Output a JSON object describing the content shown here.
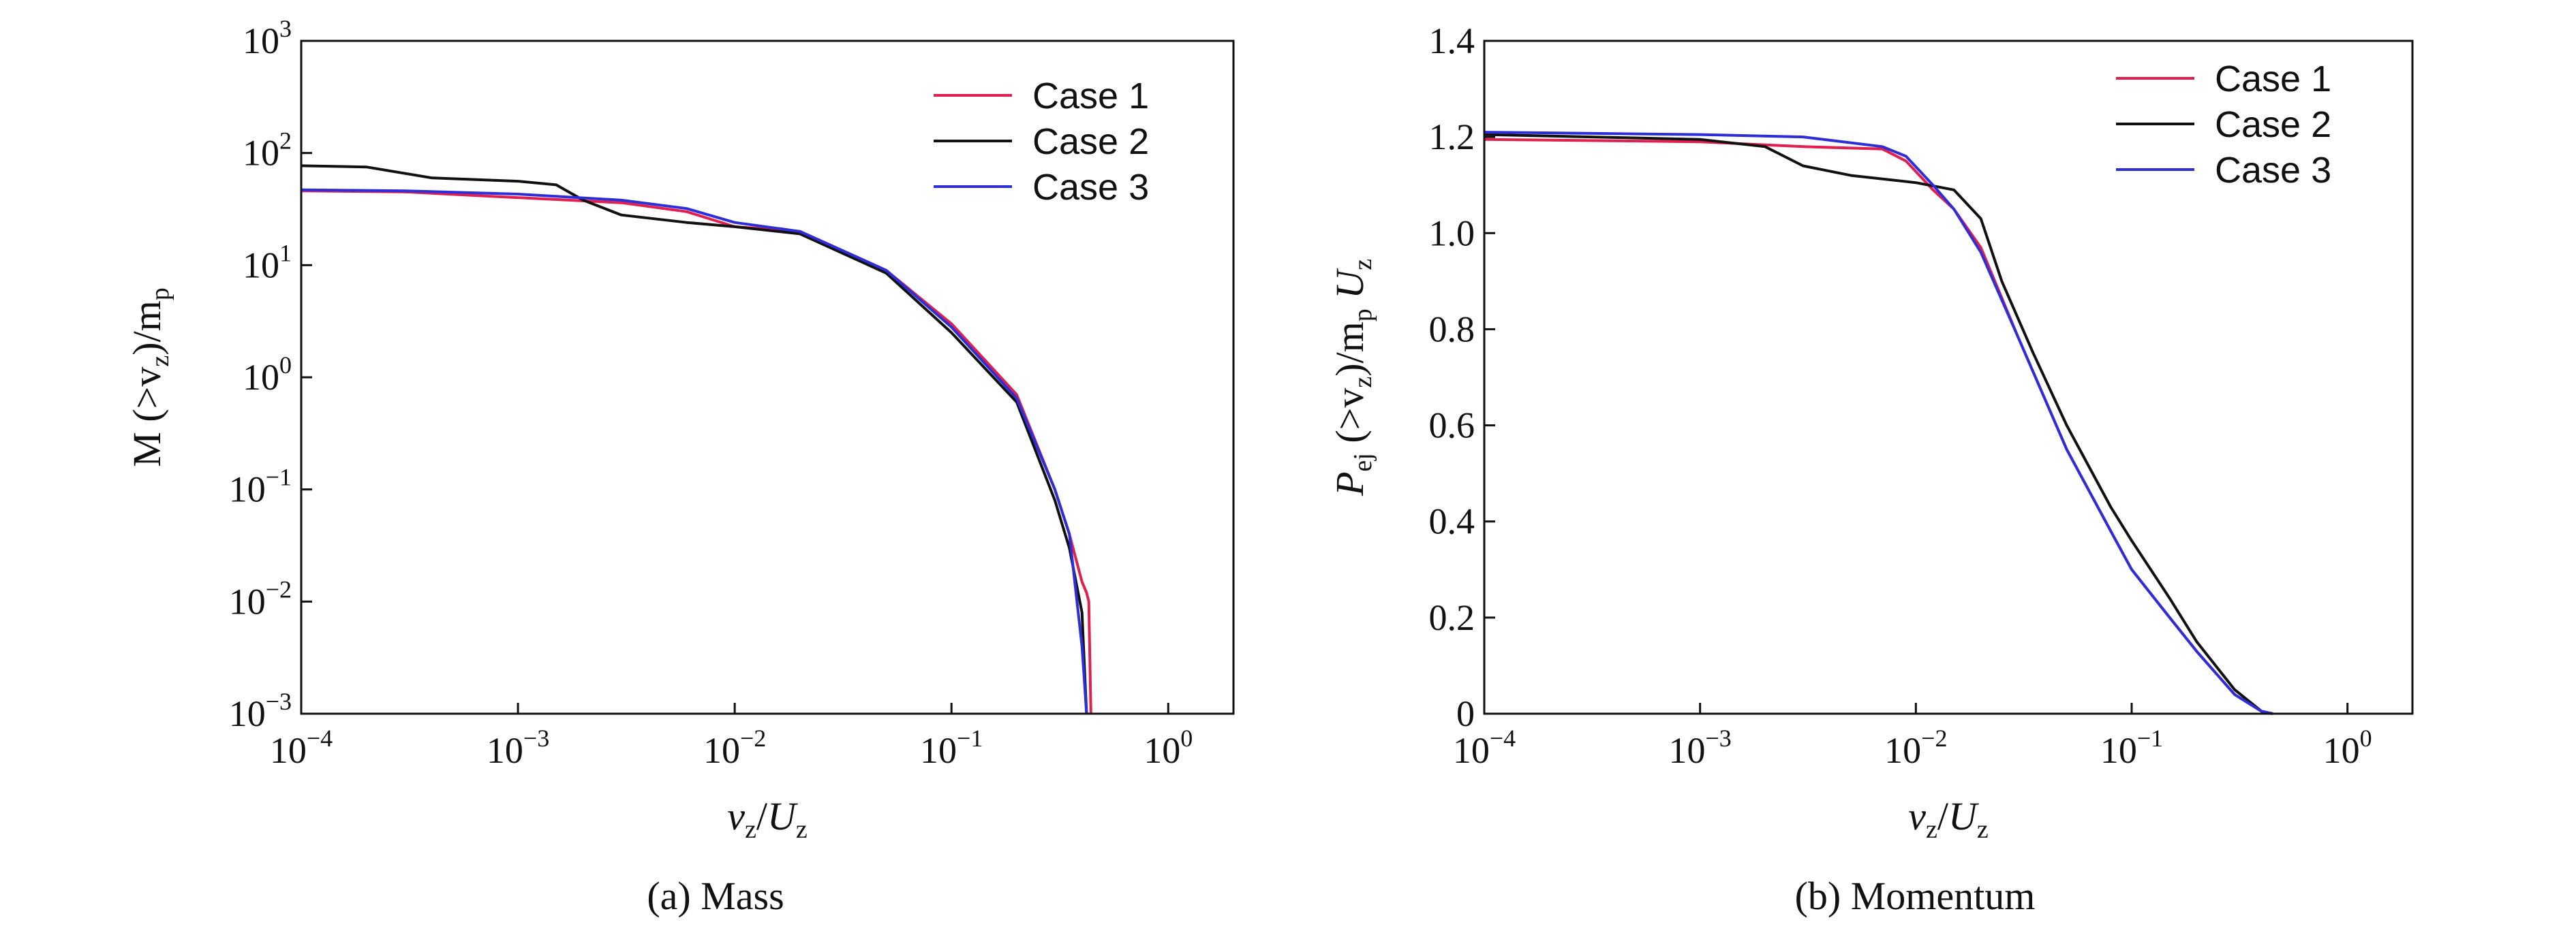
{
  "chart_data": [
    {
      "type": "line",
      "caption": "(a) Mass",
      "xscale": "log",
      "yscale": "log",
      "xlim": [
        0.0001,
        2
      ],
      "ylim": [
        0.001,
        1000
      ],
      "xticks": [
        {
          "value": 0.0001,
          "base": "10",
          "exp": "−4"
        },
        {
          "value": 0.001,
          "base": "10",
          "exp": "−3"
        },
        {
          "value": 0.01,
          "base": "10",
          "exp": "−2"
        },
        {
          "value": 0.1,
          "base": "10",
          "exp": "−1"
        },
        {
          "value": 1,
          "base": "10",
          "exp": "0"
        }
      ],
      "yticks": [
        {
          "value": 0.001,
          "base": "10",
          "exp": "−3"
        },
        {
          "value": 0.01,
          "base": "10",
          "exp": "−2"
        },
        {
          "value": 0.1,
          "base": "10",
          "exp": "−1"
        },
        {
          "value": 1,
          "base": "10",
          "exp": "0"
        },
        {
          "value": 10,
          "base": "10",
          "exp": "1"
        },
        {
          "value": 100,
          "base": "10",
          "exp": "2"
        },
        {
          "value": 1000,
          "base": "10",
          "exp": "3"
        }
      ],
      "xlabel": {
        "main": "v",
        "sub": "z",
        "sep": "/",
        "main2": "U",
        "sub2": "z"
      },
      "ylabel": {
        "parts": [
          "M (>v",
          "z",
          ")/m",
          "p"
        ]
      },
      "legend_position": "top-right",
      "series": [
        {
          "name": "Case 1",
          "color": "#e0204e",
          "points": [
            [
              0.0001,
              46
            ],
            [
              0.0003,
              45
            ],
            [
              0.001,
              40
            ],
            [
              0.003,
              36
            ],
            [
              0.006,
              30
            ],
            [
              0.01,
              22
            ],
            [
              0.02,
              20
            ],
            [
              0.05,
              9
            ],
            [
              0.1,
              3
            ],
            [
              0.2,
              0.7
            ],
            [
              0.3,
              0.1
            ],
            [
              0.35,
              0.04
            ],
            [
              0.4,
              0.015
            ],
            [
              0.42,
              0.012
            ],
            [
              0.43,
              0.01
            ],
            [
              0.44,
              0.001
            ]
          ]
        },
        {
          "name": "Case 2",
          "color": "#111111",
          "points": [
            [
              0.0001,
              77
            ],
            [
              0.0002,
              75
            ],
            [
              0.0004,
              60
            ],
            [
              0.001,
              56
            ],
            [
              0.0015,
              52
            ],
            [
              0.002,
              38
            ],
            [
              0.003,
              28
            ],
            [
              0.006,
              24
            ],
            [
              0.01,
              22
            ],
            [
              0.02,
              19
            ],
            [
              0.05,
              8.5
            ],
            [
              0.1,
              2.5
            ],
            [
              0.2,
              0.6
            ],
            [
              0.3,
              0.08
            ],
            [
              0.35,
              0.03
            ],
            [
              0.4,
              0.008
            ],
            [
              0.42,
              0.001
            ]
          ]
        },
        {
          "name": "Case 3",
          "color": "#2e2ed8",
          "points": [
            [
              0.0001,
              47
            ],
            [
              0.0003,
              46
            ],
            [
              0.001,
              43
            ],
            [
              0.003,
              38
            ],
            [
              0.006,
              32
            ],
            [
              0.01,
              24
            ],
            [
              0.02,
              20
            ],
            [
              0.05,
              9
            ],
            [
              0.1,
              2.8
            ],
            [
              0.2,
              0.65
            ],
            [
              0.3,
              0.1
            ],
            [
              0.35,
              0.04
            ],
            [
              0.4,
              0.004
            ],
            [
              0.41,
              0.002
            ],
            [
              0.42,
              0.001
            ]
          ]
        }
      ]
    },
    {
      "type": "line",
      "caption": "(b) Momentum",
      "xscale": "log",
      "yscale": "linear",
      "xlim": [
        0.0001,
        2
      ],
      "ylim": [
        0,
        1.4
      ],
      "xticks": [
        {
          "value": 0.0001,
          "base": "10",
          "exp": "−4"
        },
        {
          "value": 0.001,
          "base": "10",
          "exp": "−3"
        },
        {
          "value": 0.01,
          "base": "10",
          "exp": "−2"
        },
        {
          "value": 0.1,
          "base": "10",
          "exp": "−1"
        },
        {
          "value": 1,
          "base": "10",
          "exp": "0"
        }
      ],
      "yticks": [
        {
          "value": 0,
          "label": "0"
        },
        {
          "value": 0.2,
          "label": "0.2"
        },
        {
          "value": 0.4,
          "label": "0.4"
        },
        {
          "value": 0.6,
          "label": "0.6"
        },
        {
          "value": 0.8,
          "label": "0.8"
        },
        {
          "value": 1.0,
          "label": "1.0"
        },
        {
          "value": 1.2,
          "label": "1.2"
        },
        {
          "value": 1.4,
          "label": "1.4"
        }
      ],
      "xlabel": {
        "main": "v",
        "sub": "z",
        "sep": "/",
        "main2": "U",
        "sub2": "z"
      },
      "ylabel": {
        "parts": [
          "P",
          "ej",
          " (>v",
          "z",
          ")/m",
          "p",
          " U",
          "z"
        ]
      },
      "legend_position": "top-right",
      "series": [
        {
          "name": "Case 1",
          "color": "#e0204e",
          "points": [
            [
              0.0001,
              1.195
            ],
            [
              0.001,
              1.19
            ],
            [
              0.003,
              1.18
            ],
            [
              0.007,
              1.175
            ],
            [
              0.009,
              1.15
            ],
            [
              0.012,
              1.09
            ],
            [
              0.015,
              1.05
            ],
            [
              0.02,
              0.97
            ],
            [
              0.03,
              0.78
            ],
            [
              0.05,
              0.55
            ],
            [
              0.08,
              0.38
            ],
            [
              0.1,
              0.3
            ],
            [
              0.15,
              0.2
            ],
            [
              0.2,
              0.13
            ],
            [
              0.3,
              0.04
            ],
            [
              0.4,
              0.005
            ],
            [
              0.45,
              0
            ]
          ]
        },
        {
          "name": "Case 2",
          "color": "#111111",
          "points": [
            [
              0.0001,
              1.205
            ],
            [
              0.001,
              1.195
            ],
            [
              0.002,
              1.18
            ],
            [
              0.003,
              1.14
            ],
            [
              0.005,
              1.12
            ],
            [
              0.01,
              1.105
            ],
            [
              0.015,
              1.09
            ],
            [
              0.02,
              1.03
            ],
            [
              0.025,
              0.9
            ],
            [
              0.035,
              0.75
            ],
            [
              0.05,
              0.6
            ],
            [
              0.08,
              0.43
            ],
            [
              0.1,
              0.36
            ],
            [
              0.15,
              0.24
            ],
            [
              0.2,
              0.15
            ],
            [
              0.3,
              0.05
            ],
            [
              0.4,
              0.005
            ],
            [
              0.45,
              0
            ]
          ]
        },
        {
          "name": "Case 3",
          "color": "#2e2ed8",
          "points": [
            [
              0.0001,
              1.21
            ],
            [
              0.001,
              1.205
            ],
            [
              0.003,
              1.2
            ],
            [
              0.007,
              1.18
            ],
            [
              0.009,
              1.16
            ],
            [
              0.012,
              1.1
            ],
            [
              0.015,
              1.05
            ],
            [
              0.02,
              0.96
            ],
            [
              0.03,
              0.78
            ],
            [
              0.05,
              0.55
            ],
            [
              0.08,
              0.38
            ],
            [
              0.1,
              0.3
            ],
            [
              0.15,
              0.2
            ],
            [
              0.2,
              0.13
            ],
            [
              0.3,
              0.04
            ],
            [
              0.4,
              0.005
            ],
            [
              0.45,
              0
            ]
          ]
        }
      ]
    }
  ]
}
